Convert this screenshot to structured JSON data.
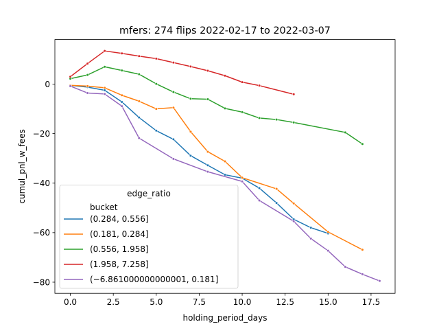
{
  "chart_data": {
    "type": "line",
    "title": "mfers: 274 flips 2022-02-17 to 2022-03-07",
    "xlabel": "holding_period_days",
    "ylabel": "cumul_pnl_w_fees",
    "xlim": [
      -0.9,
      18.9
    ],
    "ylim": [
      -84.5,
      18.0
    ],
    "x_ticks": [
      0.0,
      2.5,
      5.0,
      7.5,
      10.0,
      12.5,
      15.0,
      17.5
    ],
    "x_tick_labels": [
      "0.0",
      "2.5",
      "5.0",
      "7.5",
      "10.0",
      "12.5",
      "15.0",
      "17.5"
    ],
    "y_ticks": [
      0,
      -20,
      -40,
      -60,
      -80
    ],
    "y_tick_labels": [
      "0",
      "−20",
      "−40",
      "−60",
      "−80"
    ],
    "grid": false,
    "legend": {
      "title": "edge_ratio",
      "subtitle": "bucket",
      "placement": "lower-left"
    },
    "series": [
      {
        "name": "(0.284, 0.556]",
        "color": "#1f77b4",
        "x": [
          0,
          1,
          2,
          3,
          4,
          5,
          6,
          7,
          8,
          9,
          10,
          11,
          12,
          13,
          14,
          15
        ],
        "y": [
          -0.5,
          -1.2,
          -2.5,
          -7.2,
          -13.5,
          -18.8,
          -22.3,
          -28.9,
          -32.8,
          -36.6,
          -38.0,
          -42.0,
          -48.0,
          -54.6,
          -58.0,
          -60.3
        ]
      },
      {
        "name": "(0.181, 0.284]",
        "color": "#ff7f0e",
        "x": [
          0,
          1,
          2,
          3,
          4,
          5,
          6,
          7,
          8,
          9,
          10,
          12,
          13,
          15,
          17
        ],
        "y": [
          -0.5,
          -0.8,
          -1.5,
          -4.5,
          -6.9,
          -10.0,
          -9.5,
          -19.2,
          -27.3,
          -31.2,
          -37.8,
          -42.3,
          -48.2,
          -59.7,
          -66.9
        ]
      },
      {
        "name": "(0.556, 1.958]",
        "color": "#2ca02c",
        "x": [
          0,
          1,
          2,
          3,
          4,
          5,
          6,
          7,
          8,
          9,
          10,
          11,
          12,
          13,
          16,
          17
        ],
        "y": [
          2.2,
          3.7,
          7.0,
          5.5,
          4.0,
          0.1,
          -3.2,
          -5.9,
          -6.1,
          -9.8,
          -11.3,
          -13.7,
          -14.3,
          -15.5,
          -19.5,
          -24.2
        ]
      },
      {
        "name": "(1.958, 7.258]",
        "color": "#d62728",
        "x": [
          0,
          1,
          2,
          3,
          4,
          5,
          6,
          7,
          8,
          9,
          10,
          11,
          13
        ],
        "y": [
          3.0,
          8.3,
          13.4,
          12.4,
          11.3,
          10.3,
          8.7,
          7.1,
          5.4,
          3.4,
          0.8,
          -0.6,
          -4.1
        ]
      },
      {
        "name": "(−6.861000000000001, 0.181]",
        "color": "#9467bd",
        "x": [
          0,
          1,
          2,
          3,
          4,
          6,
          8,
          10,
          11,
          13,
          14,
          15,
          16,
          17,
          18
        ],
        "y": [
          -0.8,
          -3.6,
          -4.0,
          -8.9,
          -21.8,
          -30.2,
          -35.4,
          -39.3,
          -47.0,
          -55.4,
          -62.4,
          -67.3,
          -73.8,
          -76.8,
          -79.5
        ]
      }
    ]
  }
}
